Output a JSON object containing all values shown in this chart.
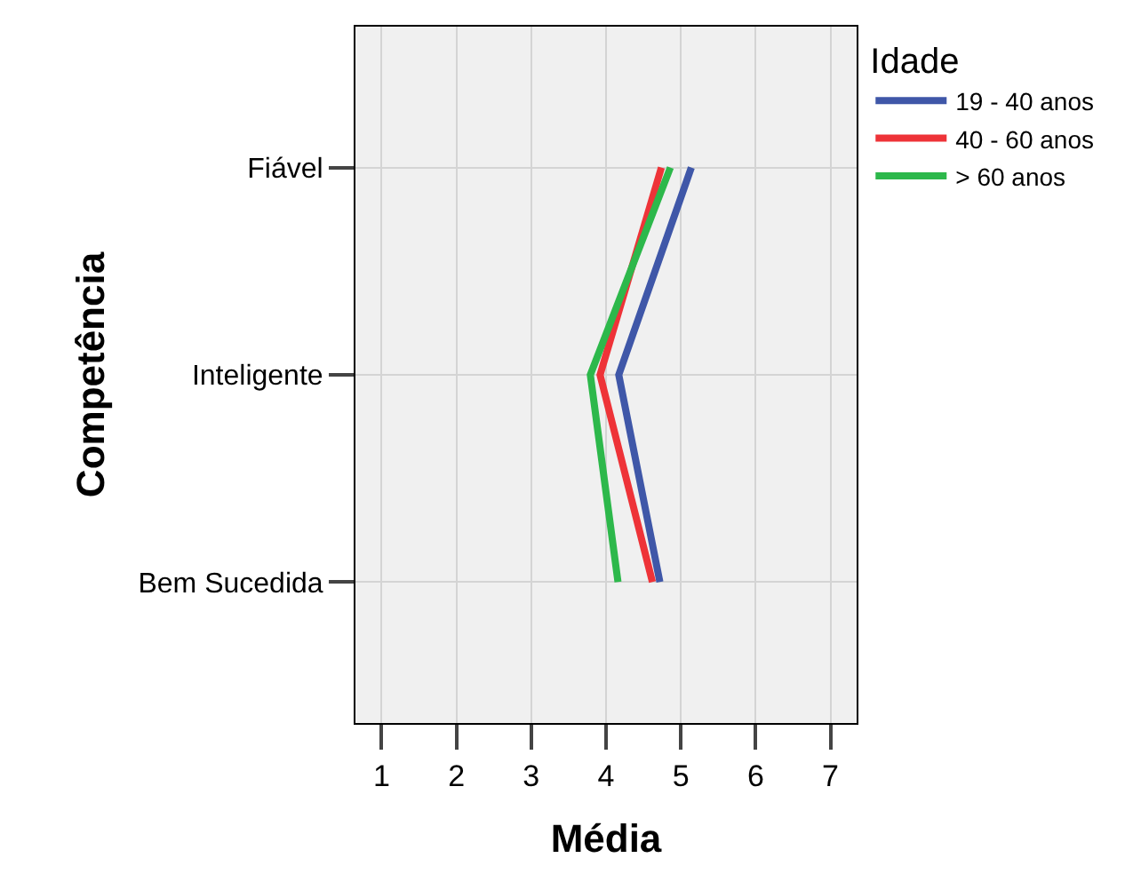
{
  "chart_data": {
    "type": "line",
    "orientation": "horizontal",
    "categories": [
      "Fiável",
      "Inteligente",
      "Bem Sucedida"
    ],
    "series": [
      {
        "name": "19 - 40 anos",
        "color": "#3f57a8",
        "values": [
          5.14,
          4.17,
          4.72
        ]
      },
      {
        "name": "40 - 60 anos",
        "color": "#ee3338",
        "values": [
          4.74,
          3.92,
          4.62
        ]
      },
      {
        "name": "> 60 anos",
        "color": "#2db84b",
        "values": [
          4.86,
          3.79,
          4.16
        ]
      }
    ],
    "xlabel": "Média",
    "ylabel": "Competência",
    "legend_title": "Idade",
    "legend": "top right",
    "xlim": [
      0.65,
      7.35
    ],
    "xticks": [
      1,
      2,
      3,
      4,
      5,
      6,
      7
    ],
    "grid": true,
    "marker": "none",
    "line_style": "solid"
  }
}
